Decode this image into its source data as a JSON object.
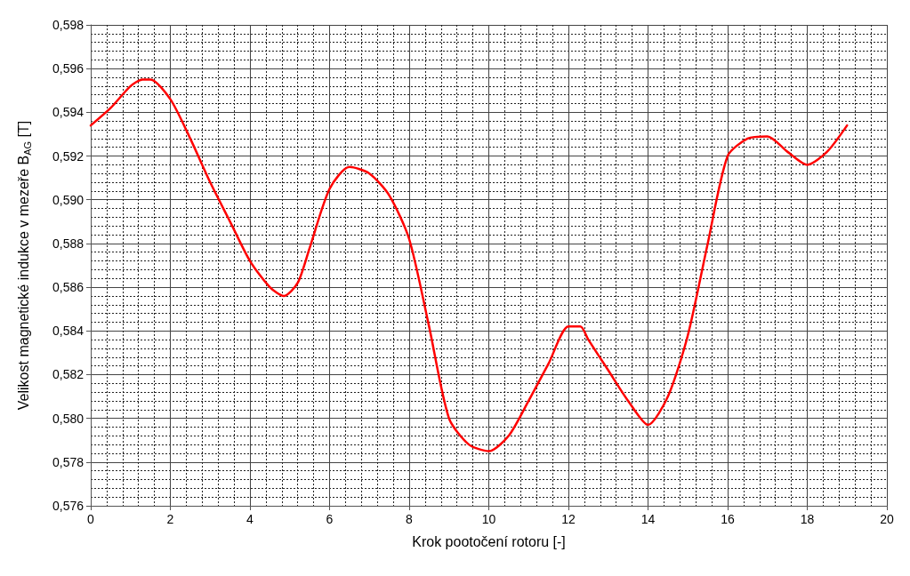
{
  "chart_data": {
    "type": "line",
    "xlabel": "Krok pootočení rotoru [-]",
    "ylabel": "Velikost magnetické indukce v mezeře B$_{AG}$ [T]",
    "x": [
      0,
      0.5,
      1,
      1.3,
      1.5,
      2,
      2.5,
      3,
      3.5,
      4,
      4.5,
      4.85,
      5.2,
      5.5,
      6,
      6.5,
      7,
      7.5,
      8,
      8.5,
      9,
      9.5,
      10,
      10.5,
      11,
      11.5,
      12,
      12.3,
      12.5,
      13,
      13.5,
      14,
      14.5,
      15,
      15.5,
      16,
      16.5,
      17,
      17.5,
      18,
      18.5,
      19
    ],
    "series": [
      {
        "color": "#ff0000",
        "values": [
          0.5934,
          0.5942,
          0.5952,
          0.5955,
          0.5955,
          0.5946,
          0.5928,
          0.5908,
          0.589,
          0.5872,
          0.586,
          0.5856,
          0.5862,
          0.5878,
          0.5905,
          0.5915,
          0.5912,
          0.5902,
          0.5882,
          0.5842,
          0.58,
          0.5788,
          0.5785,
          0.5792,
          0.5808,
          0.5825,
          0.5842,
          0.5842,
          0.5836,
          0.5822,
          0.5808,
          0.5797,
          0.581,
          0.5838,
          0.588,
          0.592,
          0.5928,
          0.5929,
          0.5922,
          0.5916,
          0.5922,
          0.5934
        ]
      }
    ],
    "xlim": [
      0,
      20
    ],
    "xticks": [
      0,
      2,
      4,
      6,
      8,
      10,
      12,
      14,
      16,
      18,
      20
    ],
    "ylim": [
      0.576,
      0.598
    ],
    "yticks": [
      {
        "value": 0.576,
        "label": "0,576"
      },
      {
        "value": 0.578,
        "label": "0,578"
      },
      {
        "value": 0.58,
        "label": "0,580"
      },
      {
        "value": 0.582,
        "label": "0,582"
      },
      {
        "value": 0.584,
        "label": "0,584"
      },
      {
        "value": 0.586,
        "label": "0,586"
      },
      {
        "value": 0.588,
        "label": "0,588"
      },
      {
        "value": 0.59,
        "label": "0,590"
      },
      {
        "value": 0.592,
        "label": "0,592"
      },
      {
        "value": 0.594,
        "label": "0,594"
      },
      {
        "value": 0.596,
        "label": "0,596"
      },
      {
        "value": 0.598,
        "label": "0,598"
      }
    ],
    "grid": true,
    "marker": "none",
    "line_style": "solid"
  }
}
